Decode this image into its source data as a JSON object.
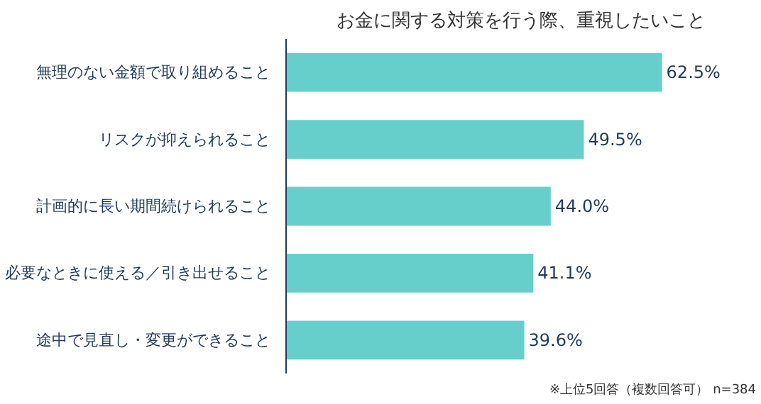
{
  "chart_data": {
    "type": "bar",
    "orientation": "horizontal",
    "title": "お金に関する対策を行う際、重視したいこと",
    "categories": [
      "無理のない金額で取り組めること",
      "リスクが抑えられること",
      "計画的に長い期間続けられること",
      "必要なときに使える／引き出せること",
      "途中で見直し・変更ができること"
    ],
    "values": [
      62.5,
      49.5,
      44.0,
      41.1,
      39.6
    ],
    "value_labels": [
      "62.5%",
      "49.5%",
      "44.0%",
      "41.1%",
      "39.6%"
    ],
    "color": "#66cfcc",
    "annotations": [
      "※上位5回答（複数回答可） n=384"
    ],
    "grid": false
  }
}
